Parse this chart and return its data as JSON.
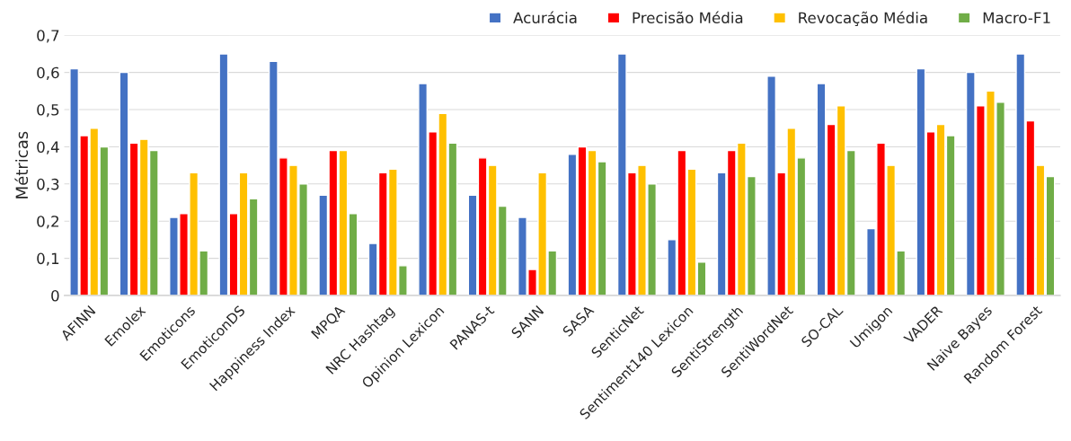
{
  "chart_data": {
    "type": "bar",
    "ylabel": "Métricas",
    "categories": [
      "AFINN",
      "Emolex",
      "Emoticons",
      "EmoticonDS",
      "Happiness Index",
      "MPQA",
      "NRC Hashtag",
      "Opinion Lexicon",
      "PANAS-t",
      "SANN",
      "SASA",
      "SenticNet",
      "Sentiment140 Lexicon",
      "SentiStrength",
      "SentiWordNet",
      "SO-CAL",
      "Umigon",
      "VADER",
      "Naive Bayes",
      "Random Forest"
    ],
    "series": [
      {
        "name": "Acurácia",
        "color": "#4472c4",
        "values": [
          0.61,
          0.6,
          0.21,
          0.65,
          0.63,
          0.27,
          0.14,
          0.57,
          0.27,
          0.21,
          0.38,
          0.65,
          0.15,
          0.33,
          0.59,
          0.57,
          0.18,
          0.61,
          0.6,
          0.65
        ]
      },
      {
        "name": "Precisão Média",
        "color": "#ff0000",
        "values": [
          0.43,
          0.41,
          0.22,
          0.22,
          0.37,
          0.39,
          0.33,
          0.44,
          0.37,
          0.07,
          0.4,
          0.33,
          0.39,
          0.39,
          0.33,
          0.46,
          0.41,
          0.44,
          0.51,
          0.47
        ]
      },
      {
        "name": "Revocação Média",
        "color": "#ffc000",
        "values": [
          0.45,
          0.42,
          0.33,
          0.33,
          0.35,
          0.39,
          0.34,
          0.49,
          0.35,
          0.33,
          0.39,
          0.35,
          0.34,
          0.41,
          0.45,
          0.51,
          0.35,
          0.46,
          0.55,
          0.35
        ]
      },
      {
        "name": "Macro-F1",
        "color": "#70ad47",
        "values": [
          0.4,
          0.39,
          0.12,
          0.26,
          0.3,
          0.22,
          0.08,
          0.41,
          0.24,
          0.12,
          0.36,
          0.3,
          0.09,
          0.32,
          0.37,
          0.39,
          0.12,
          0.43,
          0.52,
          0.32
        ]
      }
    ],
    "ylim": [
      0,
      0.7
    ],
    "yticks": [
      0,
      {
        "value": 0.1,
        "label": "0,1"
      },
      {
        "value": 0.2,
        "label": "0,2"
      },
      {
        "value": 0.3,
        "label": "0,3"
      },
      {
        "value": 0.4,
        "label": "0,4"
      },
      {
        "value": 0.5,
        "label": "0,5"
      },
      {
        "value": 0.6,
        "label": "0,6"
      },
      {
        "value": 0.7,
        "label": "0,7"
      }
    ],
    "grid": "y",
    "legend": "top right"
  }
}
